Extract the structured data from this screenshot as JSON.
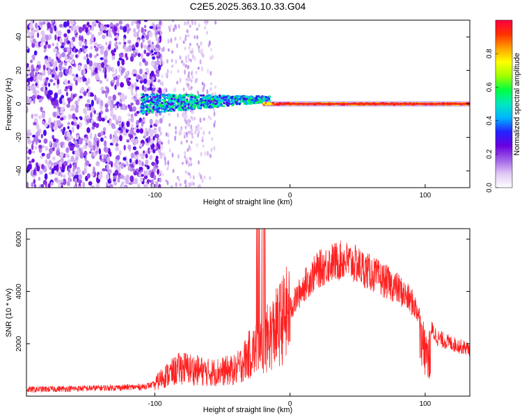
{
  "chart_data": [
    {
      "type": "heatmap",
      "title": "C2E5.2025.363.10.33.G04",
      "xlabel": "Height of straight line (km)",
      "ylabel": "Frequency (Hz)",
      "xlim": [
        -195,
        133
      ],
      "ylim": [
        -50,
        50
      ],
      "xticks": [
        -100,
        0,
        100
      ],
      "xtick_labels": [
        "-100",
        "0",
        "100"
      ],
      "yticks": [
        -40,
        -20,
        0,
        20,
        40
      ],
      "ytick_labels": [
        "-40",
        "-20",
        "0",
        "20",
        "40"
      ],
      "grid": false,
      "colorbar": {
        "label": "Normalized spectral amplitude",
        "range": [
          0,
          1
        ],
        "ticks": [
          "0.0",
          "0.2",
          "0.4",
          "0.6",
          "0.8"
        ],
        "colormap": [
          "#ffffff",
          "#e0c8f4",
          "#a060e8",
          "#6a00e0",
          "#2222ff",
          "#00b4ff",
          "#00e8c0",
          "#00ff40",
          "#a0ff00",
          "#ffff00",
          "#ffa000",
          "#ff3000",
          "#ff0040"
        ]
      },
      "regions": [
        {
          "x_range": [
            -195,
            -100
          ],
          "freq_spread": 50,
          "amplitude": 0.15
        },
        {
          "x_range": [
            -110,
            -20
          ],
          "freq_spread": 8,
          "amplitude": 0.4
        },
        {
          "x_range": [
            -20,
            130
          ],
          "freq_spread": 1,
          "amplitude": 0.9
        }
      ]
    },
    {
      "type": "line",
      "xlabel": "Height of straight line (km)",
      "ylabel": "SNR (10 * v/v)",
      "xlim": [
        -195,
        133
      ],
      "ylim": [
        0,
        6400
      ],
      "xticks": [
        -100,
        0,
        100
      ],
      "xtick_labels": [
        "-100",
        "0",
        "100"
      ],
      "yticks": [
        2000,
        4000,
        6000
      ],
      "ytick_labels": [
        "2000",
        "4000",
        "6000"
      ],
      "grid": false,
      "series_color": "#ff2020",
      "x": [
        -195,
        -150,
        -110,
        -100,
        -95,
        -80,
        -60,
        -40,
        -30,
        -20,
        -10,
        0,
        10,
        20,
        30,
        40,
        50,
        60,
        70,
        80,
        90,
        100,
        110,
        120,
        133
      ],
      "values": [
        250,
        300,
        350,
        450,
        700,
        1100,
        900,
        1000,
        1600,
        2000,
        2600,
        3300,
        4200,
        4800,
        5100,
        5200,
        5000,
        4700,
        4400,
        4100,
        3600,
        2800,
        2200,
        2000,
        1800
      ]
    }
  ]
}
